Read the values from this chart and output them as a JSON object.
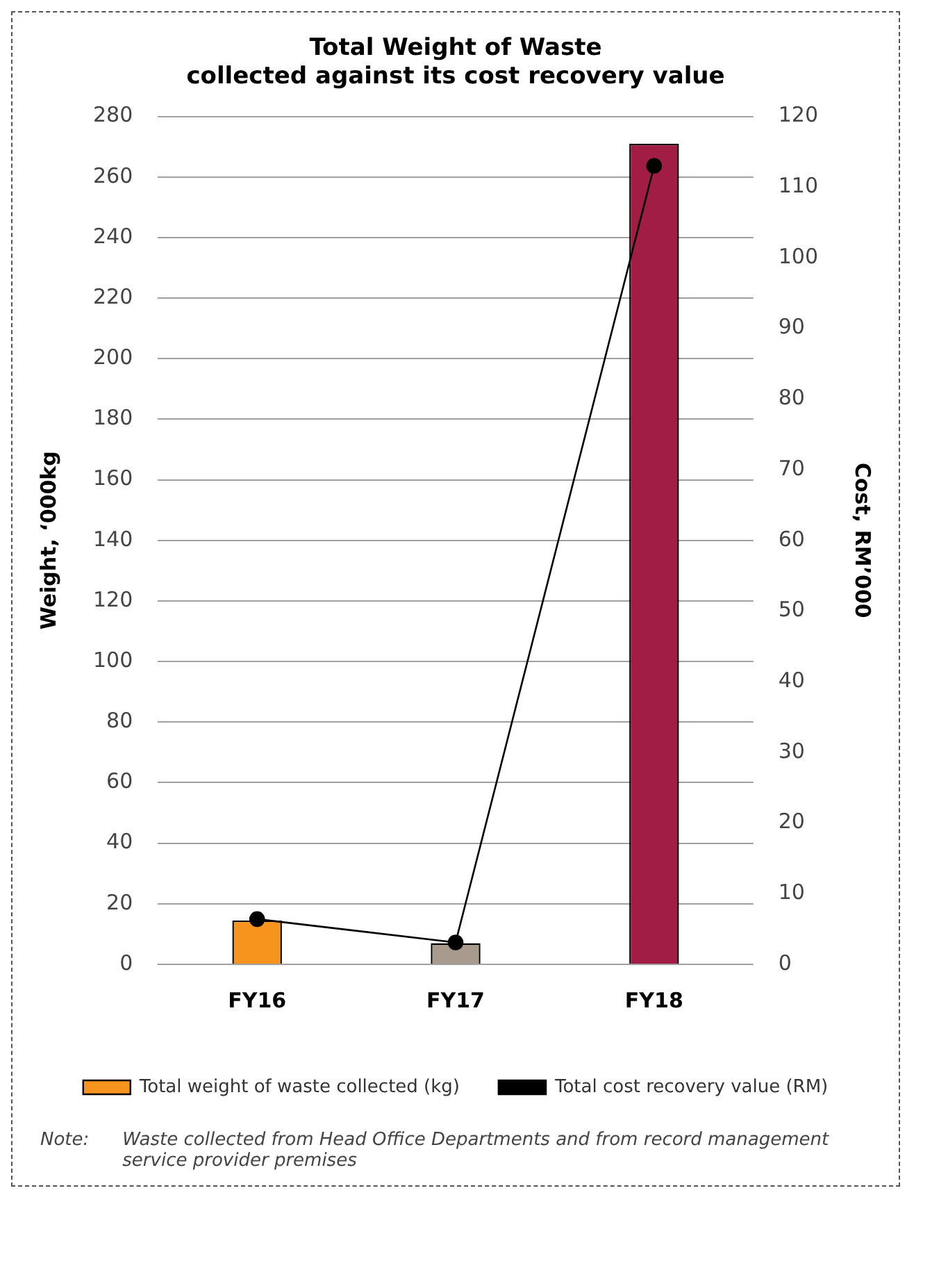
{
  "chart_data": {
    "type": "bar",
    "title": "Total Weight of Waste\ncollected against its cost recovery value",
    "ylabel": "Weight, ‘000kg",
    "y2label": "Cost, RM’000",
    "categories": [
      "FY16",
      "FY17",
      "FY18"
    ],
    "series": [
      {
        "name": "Total weight of waste collected (kg)",
        "colors": [
          "#f7941d",
          "#a89a8c",
          "#a21d45"
        ],
        "color": "#f7941d",
        "values": [
          14.5,
          7,
          271
        ]
      },
      {
        "name": "Total cost recovery value (RM)",
        "type": "line",
        "axis": "y2",
        "color": "#000000",
        "values": [
          6.4,
          3.1,
          113
        ]
      }
    ],
    "ylim": [
      0,
      280
    ],
    "yticks": [
      0,
      20,
      40,
      60,
      80,
      100,
      120,
      140,
      160,
      180,
      200,
      220,
      240,
      260,
      280
    ],
    "y2lim": [
      0,
      120
    ],
    "y2ticks": [
      0,
      10,
      20,
      30,
      40,
      50,
      60,
      70,
      80,
      90,
      100,
      110,
      120
    ],
    "grid": "y",
    "legend": "bottom",
    "marker": "circle",
    "line_style": "solid",
    "annotations": [
      "Note:",
      "Waste collected from Head Office Departments and from record management service provider premises"
    ]
  }
}
